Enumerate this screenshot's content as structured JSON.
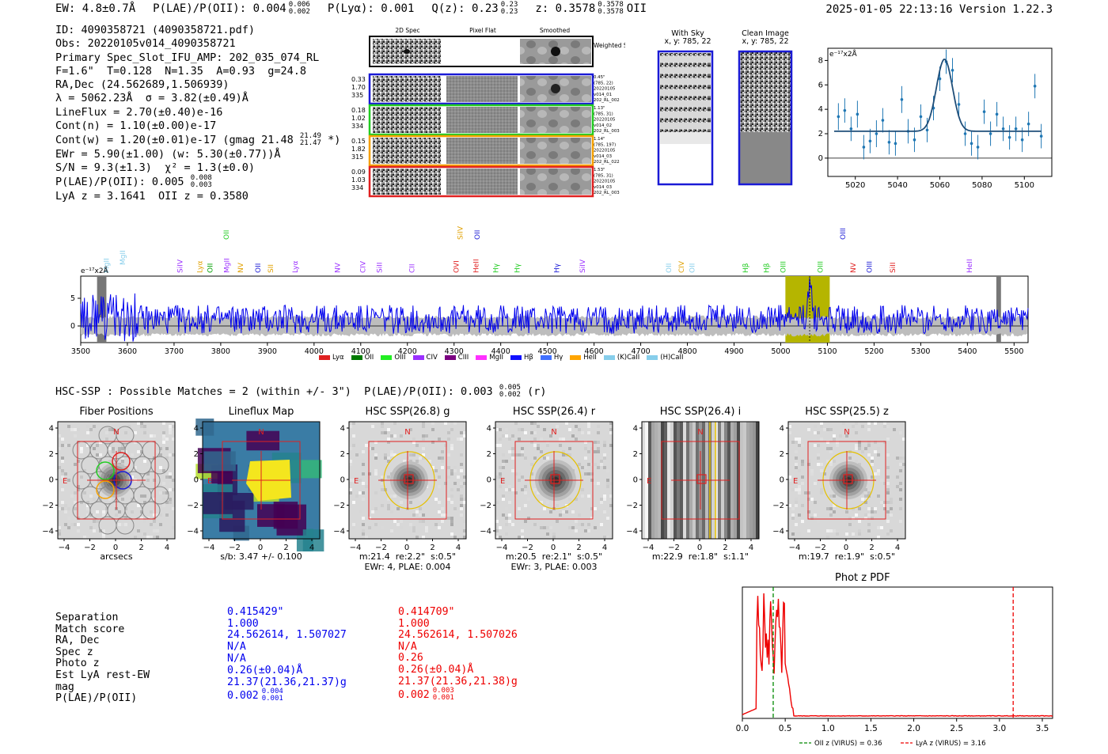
{
  "header": {
    "ew": "EW: 4.8±0.7Å",
    "plae": "P(LAE)/P(OII): 0.004",
    "plae_hi": "0.006",
    "plae_lo": "0.002",
    "plya": "P(Lyα): 0.001",
    "qz": "Q(z): 0.23",
    "qz_hi": "0.23",
    "qz_lo": "0.23",
    "z": "z: 0.3578",
    "z_hi": "0.3578",
    "z_lo": "0.3578",
    "z_line": "OII",
    "timestamp": "2025-01-05 22:13:16  Version 1.22.3"
  },
  "info": {
    "id": "ID: 4090358721 (4090358721.pdf)",
    "obs": "Obs: 20220105v014_4090358721",
    "primary": "Primary Spec_Slot_IFU_AMP: 202_035_074_RL",
    "params": "F=1.6\"  T=0.128  N=1.35  A=0.93  g=24.8",
    "radec": "RA,Dec (24.562689,1.506939)",
    "lambda": "λ = 5062.23Å  σ = 3.82(±0.49)Å",
    "lineflux": "LineFlux = 2.70(±0.40)e-16",
    "contn": "Cont(n) = 1.10(±0.00)e-17",
    "contw": "Cont(w) = 1.20(±0.01)e-17 (gmag 21.48",
    "contw_hi": "21.49",
    "contw_lo": "21.47",
    "contw_end": "*)",
    "ewr": "EWr = 5.90(±1.00) (w: 5.30(±0.77))Å",
    "sn": "S/N = 9.3(±1.3)  χ² = 1.3(±0.0)",
    "plae": "P(LAE)/P(OII): 0.005",
    "plae_hi": "0.008",
    "plae_lo": "0.003",
    "lyaz": "LyA z = 3.1641  OII z = 0.3580"
  },
  "spec2d": {
    "col_headers": [
      "2D Spec",
      "Pixel Flat",
      "Smoothed"
    ],
    "weighted_label": "Weighted Sum",
    "rows": [
      {
        "left": [
          "0.33",
          "1.70",
          "335"
        ],
        "right": [
          "0.45\"",
          "(785, 22)",
          "20220105",
          "v014_01",
          "202_RL_002"
        ],
        "color": "#1a1ad6"
      },
      {
        "left": [
          "0.18",
          "1.02",
          "334"
        ],
        "right": [
          "1.13\"",
          "(785, 31)",
          "20220105",
          "v014_02",
          "202_RL_003"
        ],
        "color": "#22cc22"
      },
      {
        "left": [
          "0.15",
          "1.82",
          "315"
        ],
        "right": [
          "1.14\"",
          "(785, 197)",
          "20220105",
          "v014_03",
          "202_RL_022"
        ],
        "color": "#f5a000"
      },
      {
        "left": [
          "0.09",
          "1.03",
          "334"
        ],
        "right": [
          "1.53\"",
          "(785, 31)",
          "20220105",
          "v014_03",
          "202_RL_003"
        ],
        "color": "#e02020"
      }
    ]
  },
  "sky": {
    "with_sky": "With Sky",
    "with_sky_xy": "x, y: 785, 22",
    "clean": "Clean Image",
    "clean_xy": "x, y: 785, 22"
  },
  "linefit": {
    "ylabel": "e⁻¹⁷x2Å",
    "xticks": [
      "5020",
      "5040",
      "5060",
      "5080",
      "5100"
    ],
    "yticks": [
      "0",
      "2",
      "4",
      "6",
      "8"
    ],
    "x": [
      5012,
      5015,
      5018,
      5021,
      5024,
      5027,
      5030,
      5033,
      5036,
      5039,
      5042,
      5045,
      5048,
      5051,
      5054,
      5057,
      5060,
      5063,
      5066,
      5069,
      5072,
      5075,
      5078,
      5081,
      5084,
      5087,
      5090,
      5093,
      5096,
      5099,
      5102,
      5105,
      5108
    ],
    "y": [
      3.4,
      3.9,
      2.4,
      3.6,
      0.9,
      1.4,
      2.0,
      3.1,
      1.3,
      1.2,
      4.8,
      2.2,
      1.5,
      3.4,
      2.3,
      4.1,
      6.5,
      7.9,
      7.2,
      4.4,
      2.0,
      1.2,
      0.9,
      3.8,
      2.0,
      3.6,
      2.4,
      1.7,
      2.4,
      1.5,
      2.8,
      5.9,
      1.8
    ],
    "err": [
      1.1,
      1.0,
      1.0,
      1.1,
      1.0,
      1.0,
      1.1,
      1.0,
      1.0,
      1.0,
      1.1,
      1.0,
      1.0,
      1.0,
      1.0,
      1.0,
      1.0,
      1.0,
      1.0,
      1.0,
      1.0,
      1.0,
      1.0,
      1.0,
      1.0,
      1.0,
      1.0,
      1.0,
      1.0,
      1.0,
      1.0,
      1.0,
      1.0
    ],
    "fit_center": 5062.2,
    "fit_sigma": 3.82,
    "fit_amp": 5.9,
    "fit_cont": 2.2
  },
  "fullspec": {
    "ylabel": "e⁻¹⁷x2Å",
    "xticks": [
      "3500",
      "3600",
      "3700",
      "3800",
      "3900",
      "4000",
      "4100",
      "4200",
      "4300",
      "4400",
      "4500",
      "4600",
      "4700",
      "4800",
      "4900",
      "5000",
      "5100",
      "5200",
      "5300",
      "5400",
      "5500"
    ],
    "yticks": [
      "0",
      "5"
    ],
    "highlight": [
      5010,
      5105
    ],
    "line_labels": [
      {
        "t": "MgII",
        "w": 3595,
        "c": "#87ceeb",
        "row": 2
      },
      {
        "t": "MgII",
        "w": 3560,
        "c": "#87ceeb",
        "row": 3
      },
      {
        "t": "SiIV",
        "w": 3718,
        "c": "#9b30ff",
        "row": 3
      },
      {
        "t": "Lyα",
        "w": 3760,
        "c": "#e0a000",
        "row": 3
      },
      {
        "t": "OII",
        "w": 3782,
        "c": "#00a000",
        "row": 3
      },
      {
        "t": "MgII",
        "w": 3818,
        "c": "#9b30ff",
        "row": 3
      },
      {
        "t": "OII",
        "w": 3817,
        "c": "#22cc22",
        "row": 1
      },
      {
        "t": "NV",
        "w": 3848,
        "c": "#e0a000",
        "row": 3
      },
      {
        "t": "OII",
        "w": 3885,
        "c": "#1a1ad6",
        "row": 3
      },
      {
        "t": "SII",
        "w": 3912,
        "c": "#e0a000",
        "row": 3
      },
      {
        "t": "Lyα",
        "w": 3965,
        "c": "#9b30ff",
        "row": 3
      },
      {
        "t": "NV",
        "w": 4055,
        "c": "#9b30ff",
        "row": 3
      },
      {
        "t": "CIV",
        "w": 4110,
        "c": "#9b30ff",
        "row": 3
      },
      {
        "t": "SiII",
        "w": 4145,
        "c": "#9b30ff",
        "row": 3
      },
      {
        "t": "CII",
        "w": 4215,
        "c": "#9b30ff",
        "row": 3
      },
      {
        "t": "OVI",
        "w": 4310,
        "c": "#e02020",
        "row": 3
      },
      {
        "t": "SiIV",
        "w": 4318,
        "c": "#e0a000",
        "row": 1
      },
      {
        "t": "HeII",
        "w": 4352,
        "c": "#e02020",
        "row": 3
      },
      {
        "t": "OII",
        "w": 4355,
        "c": "#1a1ad6",
        "row": 1
      },
      {
        "t": "Hγ",
        "w": 4395,
        "c": "#22cc22",
        "row": 3
      },
      {
        "t": "Hγ",
        "w": 4440,
        "c": "#22cc22",
        "row": 3
      },
      {
        "t": "Hγ",
        "w": 4525,
        "c": "#1a1ad6",
        "row": 3
      },
      {
        "t": "SiIV",
        "w": 4580,
        "c": "#9b30ff",
        "row": 3
      },
      {
        "t": "OII",
        "w": 4765,
        "c": "#87ceeb",
        "row": 3
      },
      {
        "t": "CIV",
        "w": 4792,
        "c": "#e0a000",
        "row": 3
      },
      {
        "t": "OII",
        "w": 4815,
        "c": "#87ceeb",
        "row": 3
      },
      {
        "t": "Hβ",
        "w": 4930,
        "c": "#22cc22",
        "row": 3
      },
      {
        "t": "Hβ",
        "w": 4975,
        "c": "#22cc22",
        "row": 3
      },
      {
        "t": "OIII",
        "w": 5010,
        "c": "#22cc22",
        "row": 3
      },
      {
        "t": "OIII",
        "w": 5090,
        "c": "#22cc22",
        "row": 3
      },
      {
        "t": "NV",
        "w": 5160,
        "c": "#e02020",
        "row": 3
      },
      {
        "t": "OIII",
        "w": 5138,
        "c": "#1a1ad6",
        "row": 1
      },
      {
        "t": "OIII",
        "w": 5195,
        "c": "#1a1ad6",
        "row": 3
      },
      {
        "t": "SiII",
        "w": 5245,
        "c": "#e02020",
        "row": 3
      },
      {
        "t": "HeII",
        "w": 5410,
        "c": "#9b30ff",
        "row": 3
      }
    ],
    "legend": [
      {
        "t": "Lyα",
        "c": "#e02020"
      },
      {
        "t": "OII",
        "c": "#007a00"
      },
      {
        "t": "OIII",
        "c": "#22ee22"
      },
      {
        "t": "CIV",
        "c": "#9b30ff"
      },
      {
        "t": "CIII",
        "c": "#7a0080"
      },
      {
        "t": "MgII",
        "c": "#ff30ff"
      },
      {
        "t": "Hβ",
        "c": "#1010ff"
      },
      {
        "t": "Hγ",
        "c": "#4070ff"
      },
      {
        "t": "HeII",
        "c": "#ffa500"
      },
      {
        "t": "(K)CaII",
        "c": "#87ceeb"
      },
      {
        "t": "(H)CaII",
        "c": "#87ceeb"
      }
    ]
  },
  "hsc": {
    "line": "HSC-SSP : Possible Matches = 2 (within +/- 3\")  P(LAE)/P(OII): 0.003",
    "hi": "0.005",
    "lo": "0.002",
    "band": "(r)",
    "panels": [
      {
        "title": "Fiber Positions",
        "caption": "arcsecs"
      },
      {
        "title": "Lineflux Map",
        "caption": "s/b: 3.47 +/- 0.100"
      },
      {
        "title": "HSC SSP(26.8) g",
        "caption": "m:21.4  re:2.2\"  s:0.5\"\nEWr: 4, PLAE: 0.004"
      },
      {
        "title": "HSC SSP(26.4) r",
        "caption": "m:20.5  re:2.1\"  s:0.5\"\nEWr: 3, PLAE: 0.003"
      },
      {
        "title": "HSC SSP(26.4) i",
        "caption": "m:22.9  re:1.8\"  s:1.1\""
      },
      {
        "title": "HSC SSP(25.5) z",
        "caption": "m:19.7  re:1.9\"  s:0.5\""
      }
    ],
    "axis_ticks_y": [
      "4",
      "2",
      "0",
      "−2",
      "−4"
    ],
    "axis_ticks_x": [
      "−4",
      "−2",
      "0",
      "2",
      "4"
    ],
    "N": "N",
    "E": "E"
  },
  "match_table": {
    "labels": [
      "Separation",
      "Match score",
      "RA, Dec",
      "Spec z",
      "Photo z",
      "Est LyA rest-EW",
      "mag",
      "P(LAE)/P(OII)"
    ],
    "col1": [
      "0.415429\"",
      "1.000",
      "24.562614, 1.507027",
      "N/A",
      "N/A",
      "0.26(±0.04)Å",
      "21.37(21.36,21.37)g",
      "0.002"
    ],
    "col1_plae_hi": "0.004",
    "col1_plae_lo": "0.001",
    "col2": [
      "0.414709\"",
      "1.000",
      "24.562614, 1.507026",
      "N/A",
      "0.26",
      "0.26(±0.04)Å",
      "21.37(21.36,21.38)g",
      "0.002"
    ],
    "col2_plae_hi": "0.003",
    "col2_plae_lo": "0.001"
  },
  "photoz": {
    "title": "Phot z PDF",
    "xticks": [
      "0.0",
      "0.5",
      "1.0",
      "1.5",
      "2.0",
      "2.5",
      "3.0",
      "3.5"
    ],
    "oii_z": 0.36,
    "lya_z": 3.16,
    "legend_oii": "OII z (VIRUS) = 0.36",
    "legend_lya": "LyA z (VIRUS) = 3.16"
  },
  "colors": {
    "blue": "#0000ee",
    "red": "#ee0000",
    "green": "#008800",
    "olive": "#b5b500"
  }
}
